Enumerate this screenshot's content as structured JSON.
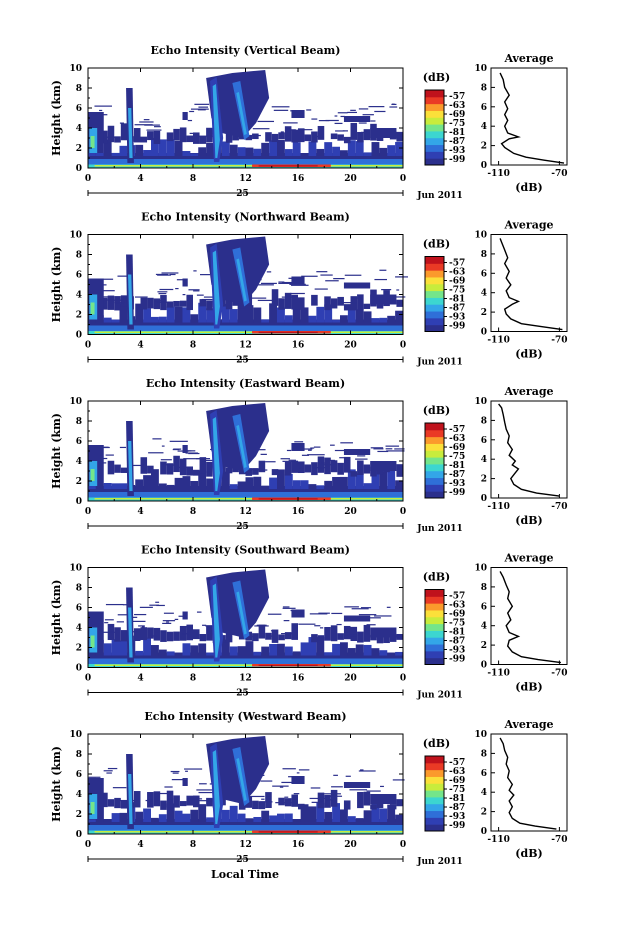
{
  "figure": {
    "xlabel": "Local Time",
    "date_label": "Jun 2011",
    "day_label": "25",
    "ylabel": "Height (km)",
    "colorbar_unit": "(dB)",
    "avg_title": "Average",
    "avg_xlabel": "(dB)"
  },
  "chart_data": [
    {
      "type": "heatmap",
      "title": "Echo Intensity (Vertical Beam)",
      "x_ticks": [
        "0",
        "4",
        "8",
        "12",
        "16",
        "20",
        "0"
      ],
      "y_ticks": [
        "0",
        "2",
        "4",
        "6",
        "8",
        "10"
      ],
      "xlim": [
        0,
        24
      ],
      "ylim": [
        0,
        10
      ],
      "colorbar_ticks": [
        "-57",
        "-63",
        "-69",
        "-75",
        "-81",
        "-87",
        "-93",
        "-99"
      ],
      "profile": {
        "type": "line",
        "x_ticks": [
          "-110",
          "-70"
        ],
        "y_ticks": [
          "0",
          "2",
          "4",
          "6",
          "8",
          "10"
        ],
        "xlim": [
          -115,
          -65
        ],
        "points": [
          [
            -67,
            0.2
          ],
          [
            -80,
            0.5
          ],
          [
            -92,
            0.8
          ],
          [
            -100,
            1.2
          ],
          [
            -106,
            1.8
          ],
          [
            -108,
            2.2
          ],
          [
            -103,
            2.7
          ],
          [
            -97,
            2.9
          ],
          [
            -104,
            3.3
          ],
          [
            -106,
            4.0
          ],
          [
            -104,
            4.6
          ],
          [
            -106,
            5.2
          ],
          [
            -104,
            5.8
          ],
          [
            -106,
            6.5
          ],
          [
            -103,
            7.2
          ],
          [
            -106,
            8.0
          ],
          [
            -107,
            8.8
          ],
          [
            -109,
            9.5
          ]
        ]
      }
    },
    {
      "type": "heatmap",
      "title": "Echo Intensity (Northward Beam)",
      "x_ticks": [
        "0",
        "4",
        "8",
        "12",
        "16",
        "20",
        "0"
      ],
      "y_ticks": [
        "0",
        "2",
        "4",
        "6",
        "8",
        "10"
      ],
      "xlim": [
        0,
        24
      ],
      "ylim": [
        0,
        10
      ],
      "colorbar_ticks": [
        "-57",
        "-63",
        "-69",
        "-75",
        "-81",
        "-87",
        "-93",
        "-99"
      ],
      "profile": {
        "type": "line",
        "x_ticks": [
          "-110",
          "-70"
        ],
        "y_ticks": [
          "0",
          "2",
          "4",
          "6",
          "8",
          "10"
        ],
        "xlim": [
          -115,
          -65
        ],
        "points": [
          [
            -68,
            0.2
          ],
          [
            -82,
            0.5
          ],
          [
            -95,
            0.8
          ],
          [
            -102,
            1.3
          ],
          [
            -105,
            1.8
          ],
          [
            -106,
            2.3
          ],
          [
            -101,
            2.8
          ],
          [
            -97,
            3.1
          ],
          [
            -103,
            3.5
          ],
          [
            -105,
            4.2
          ],
          [
            -102,
            4.8
          ],
          [
            -105,
            5.5
          ],
          [
            -103,
            6.2
          ],
          [
            -106,
            7.0
          ],
          [
            -104,
            7.6
          ],
          [
            -106,
            8.4
          ],
          [
            -108,
            9.2
          ],
          [
            -109,
            9.6
          ]
        ]
      }
    },
    {
      "type": "heatmap",
      "title": "Echo Intensity (Eastward Beam)",
      "x_ticks": [
        "0",
        "4",
        "8",
        "12",
        "16",
        "20",
        "0"
      ],
      "y_ticks": [
        "0",
        "2",
        "4",
        "6",
        "8",
        "10"
      ],
      "xlim": [
        0,
        24
      ],
      "ylim": [
        0,
        10
      ],
      "colorbar_ticks": [
        "-57",
        "-63",
        "-69",
        "-75",
        "-81",
        "-87",
        "-93",
        "-99"
      ],
      "profile": {
        "type": "line",
        "x_ticks": [
          "-110",
          "-70"
        ],
        "y_ticks": [
          "0",
          "2",
          "4",
          "6",
          "8",
          "10"
        ],
        "xlim": [
          -115,
          -65
        ],
        "points": [
          [
            -70,
            0.2
          ],
          [
            -85,
            0.5
          ],
          [
            -95,
            0.9
          ],
          [
            -100,
            1.4
          ],
          [
            -102,
            2.0
          ],
          [
            -99,
            2.6
          ],
          [
            -97,
            3.0
          ],
          [
            -101,
            3.4
          ],
          [
            -99,
            3.8
          ],
          [
            -103,
            4.4
          ],
          [
            -101,
            5.0
          ],
          [
            -104,
            5.7
          ],
          [
            -103,
            6.4
          ],
          [
            -105,
            7.1
          ],
          [
            -106,
            7.8
          ],
          [
            -107,
            8.6
          ],
          [
            -108,
            9.3
          ],
          [
            -110,
            9.7
          ]
        ]
      }
    },
    {
      "type": "heatmap",
      "title": "Echo Intensity (Southward Beam)",
      "x_ticks": [
        "0",
        "4",
        "8",
        "12",
        "16",
        "20",
        "0"
      ],
      "y_ticks": [
        "0",
        "2",
        "4",
        "6",
        "8",
        "10"
      ],
      "xlim": [
        0,
        24
      ],
      "ylim": [
        0,
        10
      ],
      "colorbar_ticks": [
        "-57",
        "-63",
        "-69",
        "-75",
        "-81",
        "-87",
        "-93",
        "-99"
      ],
      "profile": {
        "type": "line",
        "x_ticks": [
          "-110",
          "-70"
        ],
        "y_ticks": [
          "0",
          "2",
          "4",
          "6",
          "8",
          "10"
        ],
        "xlim": [
          -115,
          -65
        ],
        "points": [
          [
            -69,
            0.2
          ],
          [
            -84,
            0.5
          ],
          [
            -95,
            0.8
          ],
          [
            -101,
            1.3
          ],
          [
            -104,
            1.9
          ],
          [
            -103,
            2.5
          ],
          [
            -97,
            2.9
          ],
          [
            -103,
            3.3
          ],
          [
            -105,
            4.0
          ],
          [
            -102,
            4.6
          ],
          [
            -104,
            5.3
          ],
          [
            -101,
            6.0
          ],
          [
            -104,
            6.8
          ],
          [
            -103,
            7.5
          ],
          [
            -105,
            8.2
          ],
          [
            -107,
            9.0
          ],
          [
            -109,
            9.6
          ]
        ]
      }
    },
    {
      "type": "heatmap",
      "title": "Echo Intensity (Westward Beam)",
      "x_ticks": [
        "0",
        "4",
        "8",
        "12",
        "16",
        "20",
        "0"
      ],
      "y_ticks": [
        "0",
        "2",
        "4",
        "6",
        "8",
        "10"
      ],
      "xlim": [
        0,
        24
      ],
      "ylim": [
        0,
        10
      ],
      "colorbar_ticks": [
        "-57",
        "-63",
        "-69",
        "-75",
        "-81",
        "-87",
        "-93",
        "-99"
      ],
      "profile": {
        "type": "line",
        "x_ticks": [
          "-110",
          "-70"
        ],
        "y_ticks": [
          "0",
          "2",
          "4",
          "6",
          "8",
          "10"
        ],
        "xlim": [
          -115,
          -65
        ],
        "points": [
          [
            -72,
            0.2
          ],
          [
            -86,
            0.5
          ],
          [
            -96,
            0.8
          ],
          [
            -101,
            1.3
          ],
          [
            -103,
            1.9
          ],
          [
            -101,
            2.5
          ],
          [
            -103,
            3.1
          ],
          [
            -100,
            3.7
          ],
          [
            -103,
            4.2
          ],
          [
            -101,
            4.8
          ],
          [
            -104,
            5.5
          ],
          [
            -103,
            6.2
          ],
          [
            -105,
            6.9
          ],
          [
            -104,
            7.6
          ],
          [
            -106,
            8.3
          ],
          [
            -107,
            9.0
          ],
          [
            -109,
            9.6
          ]
        ]
      }
    }
  ],
  "colors": {
    "colormap": [
      "#2b2f8c",
      "#2f3fb3",
      "#2f6fd8",
      "#33a6e8",
      "#3cd6d0",
      "#74e58a",
      "#c8ec3c",
      "#fbe03a",
      "#fb9a2c",
      "#ea3a25",
      "#c0121c"
    ]
  }
}
